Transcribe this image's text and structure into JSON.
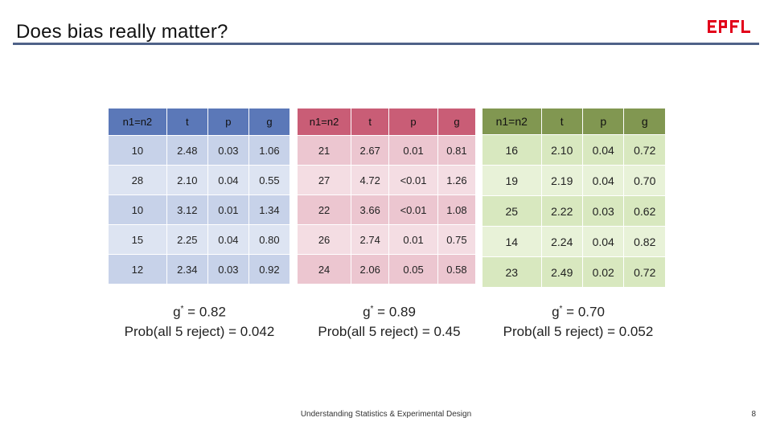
{
  "slide": {
    "title": "Does bias really matter?",
    "logo_text": "EPFL",
    "logo_color": "#e2001a",
    "footer": "Understanding Statistics & Experimental Design",
    "page_number": "8"
  },
  "tables": [
    {
      "headers": [
        "n1=n2",
        "t",
        "p",
        "g"
      ],
      "rows": [
        [
          "10",
          "2.48",
          "0.03",
          "1.06"
        ],
        [
          "28",
          "2.10",
          "0.04",
          "0.55"
        ],
        [
          "10",
          "3.12",
          "0.01",
          "1.34"
        ],
        [
          "15",
          "2.25",
          "0.04",
          "0.80"
        ],
        [
          "12",
          "2.34",
          "0.03",
          "0.92"
        ]
      ],
      "summary": {
        "g_label": "g",
        "g_sup": "*",
        "g_value": " = 0.82",
        "prob": "Prob(all 5 reject) = 0.042"
      }
    },
    {
      "headers": [
        "n1=n2",
        "t",
        "p",
        "g"
      ],
      "rows": [
        [
          "21",
          "2.67",
          "0.01",
          "0.81"
        ],
        [
          "27",
          "4.72",
          "<0.01",
          "1.26"
        ],
        [
          "22",
          "3.66",
          "<0.01",
          "1.08"
        ],
        [
          "26",
          "2.74",
          "0.01",
          "0.75"
        ],
        [
          "24",
          "2.06",
          "0.05",
          "0.58"
        ]
      ],
      "summary": {
        "g_label": "g",
        "g_sup": "*",
        "g_value": " = 0.89",
        "prob": "Prob(all 5 reject) = 0.45"
      }
    },
    {
      "headers": [
        "n1=n2",
        "t",
        "p",
        "g"
      ],
      "rows": [
        [
          "16",
          "2.10",
          "0.04",
          "0.72"
        ],
        [
          "19",
          "2.19",
          "0.04",
          "0.70"
        ],
        [
          "25",
          "2.22",
          "0.03",
          "0.62"
        ],
        [
          "14",
          "2.24",
          "0.04",
          "0.82"
        ],
        [
          "23",
          "2.49",
          "0.02",
          "0.72"
        ]
      ],
      "summary": {
        "g_label": "g",
        "g_sup": "*",
        "g_value": " = 0.70",
        "prob": "Prob(all 5 reject) = 0.052"
      }
    }
  ]
}
